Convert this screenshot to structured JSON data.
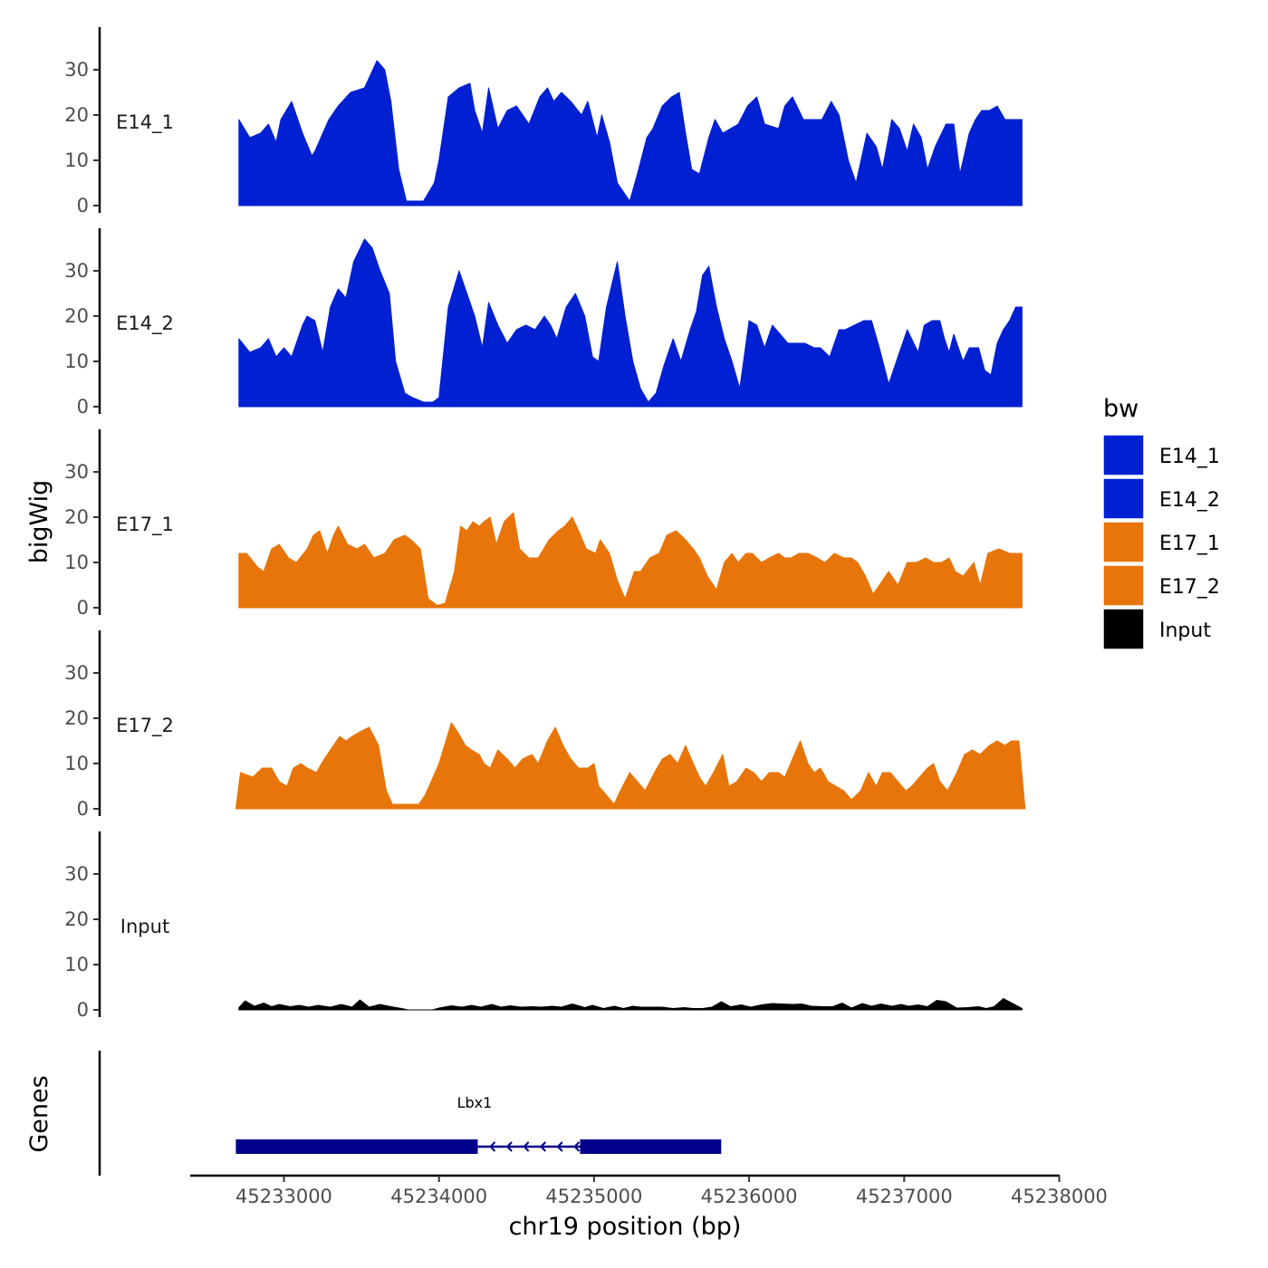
{
  "chart_data": {
    "type": "area",
    "chromosome": "chr19",
    "x_label": "chr19 position (bp)",
    "y_label": "bigWig",
    "genes_label": "Genes",
    "xlim": [
      45232600,
      45238000
    ],
    "ylim": [
      0,
      38
    ],
    "y_ticks": [
      0,
      10,
      20,
      30
    ],
    "x_ticks": [
      45233000,
      45234000,
      45235000,
      45236000,
      45237000,
      45238000
    ],
    "x_tick_labels": [
      "45233000",
      "45234000",
      "45235000",
      "45236000",
      "45237000",
      "45238000"
    ],
    "legend_title": "bw",
    "tracks": [
      {
        "name": "E14_1",
        "color": "#0020D2",
        "x": [
          45232710,
          45232780,
          45232850,
          45232900,
          45232950,
          45232980,
          45233050,
          45233120,
          45233180,
          45233200,
          45233290,
          45233350,
          45233430,
          45233520,
          45233600,
          45233650,
          45233690,
          45233740,
          45233790,
          45233850,
          45233900,
          45233970,
          45234000,
          45234060,
          45234130,
          45234200,
          45234230,
          45234280,
          45234320,
          45234380,
          45234440,
          45234500,
          45234580,
          45234650,
          45234700,
          45234740,
          45234790,
          45234850,
          45234920,
          45234960,
          45235020,
          45235050,
          45235100,
          45235150,
          45235190,
          45235230,
          45235280,
          45235340,
          45235380,
          45235440,
          45235500,
          45235550,
          45235590,
          45235630,
          45235680,
          45235740,
          45235780,
          45235830,
          45235880,
          45235930,
          45235990,
          45236050,
          45236100,
          45236190,
          45236230,
          45236280,
          45236350,
          45236410,
          45236470,
          45236530,
          45236580,
          45236640,
          45236690,
          45236760,
          45236820,
          45236860,
          45236920,
          45236970,
          45237020,
          45237060,
          45237110,
          45237150,
          45237200,
          45237270,
          45237320,
          45237360,
          45237420,
          45237460,
          45237500,
          45237550,
          45237600,
          45237650,
          45237700,
          45237760
        ],
        "y": [
          19,
          15,
          16,
          18,
          14,
          19,
          23,
          16,
          11,
          12,
          19,
          22,
          25,
          26,
          32,
          30,
          23,
          8,
          1,
          1,
          1,
          5,
          10,
          24,
          26,
          27,
          21,
          16,
          26,
          17,
          21,
          22,
          18,
          24,
          26,
          23,
          25,
          23,
          20,
          23,
          15,
          20,
          14,
          5,
          3,
          1,
          7,
          15,
          17,
          22,
          24,
          25,
          16,
          8,
          7,
          15,
          19,
          16,
          17,
          18,
          22,
          24,
          18,
          17,
          22,
          24,
          19,
          19,
          19,
          23,
          20,
          10,
          5,
          16,
          13,
          8,
          19,
          17,
          12,
          18,
          15,
          8,
          13,
          18,
          18,
          7,
          16,
          19,
          21,
          21,
          22,
          19,
          19,
          19
        ]
      },
      {
        "name": "E14_2",
        "color": "#0020D2",
        "x": [
          45232710,
          45232780,
          45232850,
          45232900,
          45232950,
          45233000,
          45233050,
          45233120,
          45233150,
          45233200,
          45233250,
          45233300,
          45233350,
          45233400,
          45233450,
          45233520,
          45233570,
          45233620,
          45233680,
          45233720,
          45233780,
          45233830,
          45233900,
          45233960,
          45234000,
          45234060,
          45234130,
          45234180,
          45234230,
          45234280,
          45234320,
          45234380,
          45234440,
          45234500,
          45234560,
          45234620,
          45234680,
          45234720,
          45234760,
          45234820,
          45234880,
          45234940,
          45234990,
          45235030,
          45235080,
          45235150,
          45235200,
          45235250,
          45235300,
          45235350,
          45235400,
          45235450,
          45235510,
          45235560,
          45235620,
          45235660,
          45235700,
          45235740,
          45235790,
          45235840,
          45235890,
          45235940,
          45236000,
          45236050,
          45236100,
          45236150,
          45236200,
          45236250,
          45236300,
          45236360,
          45236420,
          45236460,
          45236520,
          45236580,
          45236620,
          45236680,
          45236740,
          45236790,
          45236840,
          45236900,
          45236960,
          45237020,
          45237090,
          45237130,
          45237180,
          45237230,
          45237260,
          45237290,
          45237320,
          45237380,
          45237420,
          45237480,
          45237520,
          45237560,
          45237600,
          45237640,
          45237680,
          45237720,
          45237760
        ],
        "y": [
          15,
          12,
          13,
          15,
          11,
          13,
          11,
          18,
          20,
          19,
          12,
          22,
          26,
          24,
          32,
          37,
          35,
          30,
          25,
          10,
          3,
          2,
          1,
          1,
          2,
          22,
          30,
          25,
          20,
          13,
          23,
          18,
          14,
          17,
          18,
          17,
          20,
          18,
          15,
          22,
          25,
          20,
          11,
          10,
          22,
          32,
          20,
          10,
          4,
          1,
          3,
          9,
          15,
          10,
          17,
          21,
          29,
          31,
          22,
          15,
          10,
          4,
          19,
          18,
          13,
          18,
          16,
          14,
          14,
          14,
          13,
          13,
          11,
          17,
          17,
          18,
          19,
          19,
          13,
          5,
          11,
          17,
          12,
          18,
          19,
          19,
          15,
          12,
          16,
          10,
          13,
          13,
          8,
          7,
          14,
          17,
          19,
          22,
          22
        ]
      },
      {
        "name": "E17_1",
        "color": "#E87509",
        "x": [
          45232710,
          45232760,
          45232830,
          45232870,
          45232920,
          45232970,
          45233030,
          45233080,
          45233150,
          45233190,
          45233230,
          45233280,
          45233320,
          45233350,
          45233410,
          45233470,
          45233520,
          45233580,
          45233650,
          45233710,
          45233780,
          45233820,
          45233880,
          45233930,
          45233990,
          45234040,
          45234100,
          45234140,
          45234180,
          45234220,
          45234260,
          45234290,
          45234330,
          45234370,
          45234420,
          45234480,
          45234520,
          45234580,
          45234640,
          45234710,
          45234770,
          45234810,
          45234860,
          45234900,
          45234950,
          45235010,
          45235040,
          45235100,
          45235150,
          45235200,
          45235260,
          45235300,
          45235360,
          45235420,
          45235470,
          45235530,
          45235590,
          45235640,
          45235680,
          45235730,
          45235790,
          45235840,
          45235890,
          45235930,
          45235980,
          45236020,
          45236080,
          45236130,
          45236190,
          45236230,
          45236270,
          45236320,
          45236380,
          45236440,
          45236490,
          45236550,
          45236610,
          45236660,
          45236700,
          45236750,
          45236800,
          45236860,
          45236900,
          45236960,
          45237020,
          45237080,
          45237140,
          45237190,
          45237240,
          45237290,
          45237330,
          45237380,
          45237450,
          45237490,
          45237540,
          45237610,
          45237680,
          45237720,
          45237760
        ],
        "y": [
          12,
          12,
          9,
          8,
          13,
          14,
          11,
          10,
          13,
          16,
          17,
          12,
          16,
          18,
          14,
          13,
          14,
          11,
          12,
          15,
          16,
          15,
          13,
          2,
          0.5,
          1,
          8,
          18,
          17,
          19,
          18,
          19,
          20,
          14,
          19,
          21,
          13,
          11,
          11,
          15,
          17,
          18,
          20,
          17,
          13,
          12,
          15,
          12,
          6,
          2,
          8,
          8,
          11,
          12,
          16,
          17,
          15,
          13,
          11,
          7,
          4,
          10,
          12,
          10,
          12,
          12,
          10,
          11,
          12,
          11,
          11,
          12,
          12,
          11,
          10,
          12,
          11,
          11,
          10,
          7,
          3,
          6,
          8,
          5,
          10,
          10,
          11,
          10,
          10,
          11,
          8,
          7,
          10,
          5,
          12,
          13,
          12,
          12,
          12
        ]
      },
      {
        "name": "E17_2",
        "color": "#E87509",
        "x": [
          45232690,
          45232720,
          45232800,
          45232860,
          45232920,
          45232970,
          45233020,
          45233060,
          45233110,
          45233150,
          45233210,
          45233260,
          45233300,
          45233360,
          45233400,
          45233440,
          45233490,
          45233550,
          45233610,
          45233660,
          45233700,
          45233740,
          45233800,
          45233870,
          45233910,
          45233950,
          45234000,
          45234080,
          45234120,
          45234170,
          45234210,
          45234260,
          45234290,
          45234330,
          45234380,
          45234440,
          45234490,
          45234540,
          45234600,
          45234640,
          45234700,
          45234750,
          45234800,
          45234850,
          45234900,
          45234960,
          45235000,
          45235030,
          45235080,
          45235130,
          45235170,
          45235230,
          45235280,
          45235330,
          45235390,
          45235440,
          45235490,
          45235540,
          45235590,
          45235640,
          45235680,
          45235720,
          45235770,
          45235830,
          45235870,
          45235920,
          45235980,
          45236030,
          45236080,
          45236130,
          45236190,
          45236230,
          45236280,
          45236330,
          45236380,
          45236420,
          45236460,
          45236510,
          45236560,
          45236610,
          45236660,
          45236720,
          45236770,
          45236820,
          45236860,
          45236910,
          45236960,
          45237010,
          45237050,
          45237100,
          45237150,
          45237190,
          45237230,
          45237280,
          45237340,
          45237390,
          45237440,
          45237490,
          45237550,
          45237600,
          45237650,
          45237690,
          45237740,
          45237780
        ],
        "y": [
          0,
          8,
          7,
          9,
          9,
          6,
          5,
          9,
          10,
          9,
          8,
          11,
          13,
          16,
          15,
          16,
          17,
          18,
          14,
          4,
          1,
          1,
          1,
          1,
          3,
          6,
          10,
          19,
          17,
          14,
          13,
          12,
          10,
          9,
          13,
          11,
          9,
          11,
          12,
          10,
          15,
          18,
          14,
          11,
          9,
          9,
          10,
          5,
          3,
          1,
          4,
          8,
          6,
          4,
          8,
          11,
          12,
          10,
          14,
          10,
          7,
          5,
          8,
          12,
          5,
          6,
          9,
          8,
          6,
          8,
          8,
          7,
          11,
          15,
          10,
          8,
          9,
          6,
          5,
          4,
          2,
          4,
          8,
          5,
          8,
          8,
          6,
          4,
          5,
          7,
          9,
          10,
          6,
          4,
          8,
          12,
          13,
          12,
          14,
          15,
          14,
          15,
          15,
          0
        ]
      },
      {
        "name": "Input",
        "color": "#000000",
        "x": [
          45232710,
          45232750,
          45232810,
          45232870,
          45232920,
          45232970,
          45233040,
          45233100,
          45233160,
          45233220,
          45233300,
          45233370,
          45233440,
          45233490,
          45233550,
          45233620,
          45233690,
          45233760,
          45233800,
          45233880,
          45233960,
          45234000,
          45234080,
          45234150,
          45234210,
          45234270,
          45234340,
          45234400,
          45234460,
          45234530,
          45234600,
          45234660,
          45234730,
          45234790,
          45234860,
          45234940,
          45234990,
          45235060,
          45235130,
          45235190,
          45235250,
          45235300,
          45235360,
          45235440,
          45235510,
          45235580,
          45235640,
          45235700,
          45235760,
          45235820,
          45235880,
          45235950,
          45236010,
          45236080,
          45236150,
          45236210,
          45236280,
          45236340,
          45236400,
          45236480,
          45236540,
          45236600,
          45236660,
          45236730,
          45236790,
          45236850,
          45236920,
          45236980,
          45237030,
          45237090,
          45237150,
          45237210,
          45237270,
          45237340,
          45237410,
          45237480,
          45237530,
          45237580,
          45237640,
          45237700,
          45237760
        ],
        "y": [
          0.5,
          2,
          0.8,
          1.5,
          0.7,
          1.2,
          0.7,
          1,
          0.6,
          1,
          0.6,
          1.2,
          0.6,
          2.2,
          0.6,
          1.2,
          0.7,
          0.3,
          0,
          0,
          0,
          0.4,
          0.9,
          0.6,
          1,
          0.6,
          1.2,
          0.6,
          0.9,
          0.6,
          0.7,
          0.6,
          0.8,
          0.6,
          1.3,
          0.5,
          1,
          0.3,
          0.8,
          0.3,
          0.8,
          0.6,
          0.6,
          0.6,
          0.3,
          0.5,
          0.3,
          0.3,
          0.6,
          1.8,
          0.7,
          1.1,
          0.6,
          1.1,
          1.4,
          1.3,
          1.2,
          1.3,
          0.8,
          0.7,
          0.7,
          1.5,
          0.4,
          1.4,
          0.8,
          1.3,
          0.8,
          1.2,
          0.8,
          1.1,
          0.7,
          2.1,
          1.8,
          0.4,
          0.5,
          0.7,
          0.3,
          0.7,
          2.5,
          1.4,
          0.3
        ]
      }
    ],
    "genes": [
      {
        "name": "Lbx1",
        "start": 45232690,
        "end": 45235820,
        "strand": "-",
        "exons": [
          [
            45232690,
            45234250
          ],
          [
            45234910,
            45235820
          ]
        ],
        "color": "#00008B"
      }
    ]
  }
}
